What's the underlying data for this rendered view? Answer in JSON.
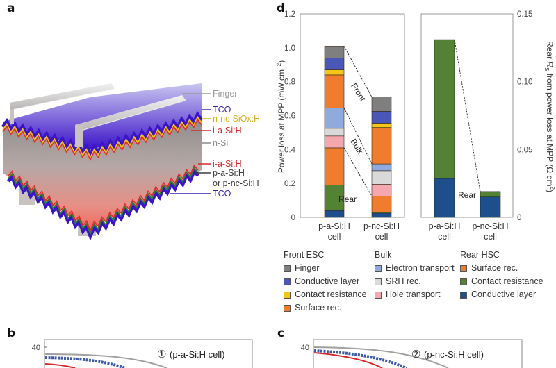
{
  "panels": {
    "a": "a",
    "b": "b",
    "c": "c",
    "d": "d"
  },
  "schematic": {
    "labels": [
      {
        "text": "Finger",
        "color": "#9a9a9a"
      },
      {
        "text": "TCO",
        "color": "#3a1fa8"
      },
      {
        "text": "n-nc-SiOx:H",
        "color": "#d4b020"
      },
      {
        "text": "i-a-Si:H",
        "color": "#d42a2a"
      },
      {
        "text": "n-Si",
        "color": "#8a8a8a"
      },
      {
        "text": "i-a-Si:H",
        "color": "#d42a2a"
      },
      {
        "text": "p-a-Si:H",
        "color": "#3a3a3a"
      },
      {
        "text": "or p-nc-Si:H",
        "color": "#3a3a3a"
      },
      {
        "text": "TCO",
        "color": "#3a1fa8"
      }
    ]
  },
  "legend": {
    "groups": [
      {
        "title": "Front ESC",
        "items": [
          {
            "label": "Finger",
            "color": "#7f7f7f"
          },
          {
            "label": "Conductive layer",
            "color": "#4a57b8"
          },
          {
            "label": "Contact resistance",
            "color": "#f5c518"
          },
          {
            "label": "Surface rec.",
            "color": "#ef7d2d"
          }
        ]
      },
      {
        "title": "Bulk",
        "items": [
          {
            "label": "Electron transport",
            "color": "#8faadc"
          },
          {
            "label": "SRH rec.",
            "color": "#d9d9d9"
          },
          {
            "label": "Hole transport",
            "color": "#f4a7ae"
          }
        ]
      },
      {
        "title": "Rear HSC",
        "items": [
          {
            "label": "Surface rec.",
            "color": "#ef7d2d"
          },
          {
            "label": "Contact resistance",
            "color": "#548235"
          },
          {
            "label": "Conductive layer",
            "color": "#1f4e8c"
          }
        ]
      }
    ]
  },
  "chart_data": [
    {
      "type": "bar",
      "stacked": true,
      "title": "",
      "xlabel": "",
      "ylabel": "Power loss at MPP (mW cm^-2)",
      "ylim": [
        0,
        1.2
      ],
      "yticks": [
        "0",
        "0.2",
        "0.4",
        "0.6",
        "0.8",
        "1.0",
        "1.2"
      ],
      "categories": [
        "p-a-Si:H cell",
        "p-nc-Si:H cell"
      ],
      "category_lines": [
        [
          "p-a-Si:H",
          "cell"
        ],
        [
          "p-nc-Si:H",
          "cell"
        ]
      ],
      "series": [
        {
          "name": "Rear HSC Conductive layer",
          "color": "#1f4e8c",
          "values": [
            0.04,
            0.025
          ]
        },
        {
          "name": "Rear HSC Contact resistance",
          "color": "#548235",
          "values": [
            0.15,
            0.005
          ]
        },
        {
          "name": "Rear HSC Surface rec.",
          "color": "#ef7d2d",
          "values": [
            0.22,
            0.095
          ]
        },
        {
          "name": "Bulk Hole transport",
          "color": "#f4a7ae",
          "values": [
            0.07,
            0.07
          ]
        },
        {
          "name": "Bulk SRH rec.",
          "color": "#d9d9d9",
          "values": [
            0.045,
            0.08
          ]
        },
        {
          "name": "Bulk Electron transport",
          "color": "#8faadc",
          "values": [
            0.12,
            0.04
          ]
        },
        {
          "name": "Front ESC Surface rec.",
          "color": "#ef7d2d",
          "values": [
            0.195,
            0.215
          ]
        },
        {
          "name": "Front ESC Contact resistance",
          "color": "#f5c518",
          "values": [
            0.03,
            0.025
          ]
        },
        {
          "name": "Front ESC Conductive layer",
          "color": "#4a57b8",
          "values": [
            0.07,
            0.07
          ]
        },
        {
          "name": "Front ESC Finger",
          "color": "#7f7f7f",
          "values": [
            0.07,
            0.085
          ]
        }
      ],
      "group_annotations": [
        {
          "text": "Front",
          "boundary_series_index": 6
        },
        {
          "text": "Bulk",
          "boundary_series_index": 3
        },
        {
          "text": "Rear",
          "boundary_series_index": 0
        }
      ]
    },
    {
      "type": "bar",
      "stacked": true,
      "title": "",
      "xlabel": "",
      "ylabel": "Rear R_S from power loss at MPP (Ω cm^2)",
      "ylim": [
        0,
        0.15
      ],
      "yticks": [
        "0",
        "0.05",
        "0.10",
        "0.15"
      ],
      "categories": [
        "p-a-Si:H cell",
        "p-nc-Si:H cell"
      ],
      "category_lines": [
        [
          "p-a-Si:H",
          "cell"
        ],
        [
          "p-nc-Si:H",
          "cell"
        ]
      ],
      "series": [
        {
          "name": "Rear HSC Conductive layer",
          "color": "#1f4e8c",
          "values": [
            0.0287,
            0.015
          ]
        },
        {
          "name": "Rear HSC Contact resistance",
          "color": "#548235",
          "values": [
            0.1023,
            0.004
          ]
        }
      ],
      "annotation": "Rear"
    },
    {
      "type": "line",
      "panel": "b",
      "annotation_marker": "①",
      "annotation": "(p-a-Si:H cell)",
      "yticks": [
        "40"
      ],
      "series": [
        {
          "name": "gray",
          "color": "#a0a0a0"
        },
        {
          "name": "blue-markers",
          "color": "#3b5aa8"
        },
        {
          "name": "red",
          "color": "#d62828"
        }
      ]
    },
    {
      "type": "line",
      "panel": "c",
      "annotation_marker": "②",
      "annotation": "(p-nc-Si:H cell)",
      "yticks": [
        "40"
      ],
      "series": [
        {
          "name": "gray",
          "color": "#a0a0a0"
        },
        {
          "name": "blue-markers",
          "color": "#3b5aa8"
        },
        {
          "name": "red",
          "color": "#d62828"
        }
      ]
    }
  ]
}
